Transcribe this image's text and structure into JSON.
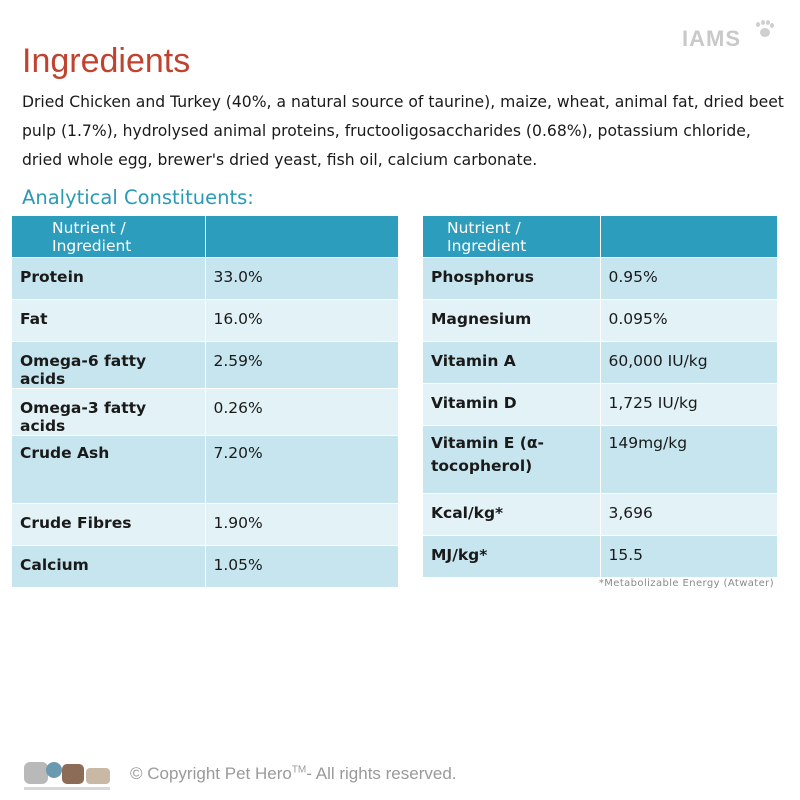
{
  "brand": "IAMS",
  "title": "Ingredients",
  "ingredients_text": "Dried Chicken and Turkey (40%, a natural source of taurine), maize, wheat, animal fat, dried beet pulp (1.7%), hydrolysed animal proteins, fructooligosaccharides (0.68%), potassium chloride, dried whole egg, brewer's dried yeast, fish oil, calcium carbonate.",
  "analytical_title": "Analytical Constituents:",
  "table_left": {
    "header": [
      "Nutrient / Ingredient",
      ""
    ],
    "rows": [
      {
        "name": "Protein",
        "value": "33.0%"
      },
      {
        "name": "Fat",
        "value": "16.0%"
      },
      {
        "name": "Omega-6 fatty acids",
        "value": "2.59%"
      },
      {
        "name": "Omega-3 fatty acids",
        "value": "0.26%"
      },
      {
        "name": "Crude Ash",
        "value": "7.20%"
      },
      {
        "name": "Crude Fibres",
        "value": "1.90%"
      },
      {
        "name": "Calcium",
        "value": "1.05%"
      }
    ]
  },
  "table_right": {
    "header": [
      "Nutrient / Ingredient",
      ""
    ],
    "rows": [
      {
        "name": "Phosphorus",
        "value": "0.95%"
      },
      {
        "name": "Magnesium",
        "value": "0.095%"
      },
      {
        "name": "Vitamin A",
        "value": "60,000 IU/kg"
      },
      {
        "name": "Vitamin D",
        "value": "1,725 IU/kg"
      },
      {
        "name": "Vitamin E (α-tocopherol)",
        "value": "149mg/kg"
      },
      {
        "name": "Kcal/kg*",
        "value": "3,696"
      },
      {
        "name": "MJ/kg*",
        "value": "15.5"
      }
    ]
  },
  "footnote": "*Metabolizable Energy (Atwater)",
  "copyright": {
    "prefix": "© Copyright Pet Hero",
    "tm": "TM",
    "suffix": "- All rights reserved."
  },
  "colors": {
    "title": "#c0432f",
    "accent": "#2c9dbc",
    "row_dark": "#c6e5ee",
    "row_light": "#e3f2f6"
  }
}
